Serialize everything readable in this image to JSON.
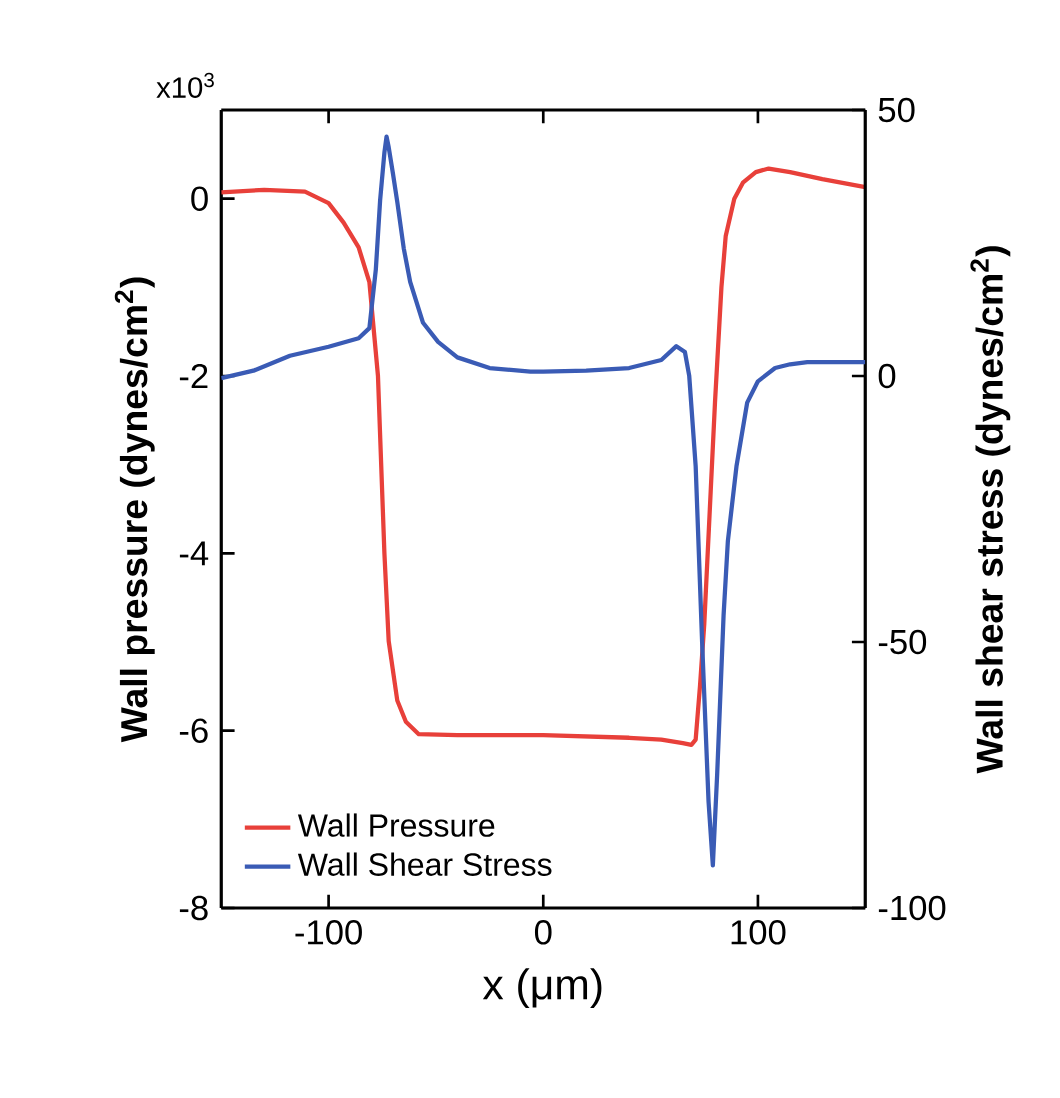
{
  "chart_data": {
    "type": "line",
    "xlabel": "x (μm)",
    "ylabel": "Wall pressure (dynes/cm$^{2}$)",
    "y2label": "Wall shear stress (dynes/cm$^{2}$)",
    "annotations": [
      "x10$^{3}$"
    ],
    "xlim": [
      -150,
      150
    ],
    "xticks": [
      -100,
      0,
      100
    ],
    "ylim": [
      -8,
      1
    ],
    "yticks": [
      -8,
      -6,
      -4,
      -2,
      0
    ],
    "y2lim": [
      -100,
      50
    ],
    "y2ticks": [
      -100,
      -50,
      0,
      50
    ],
    "legend": "bottom left",
    "grid": false,
    "marker": "none",
    "line_style": "solid",
    "series": [
      {
        "name": "Wall Pressure",
        "color": "#e8403a",
        "x": [
          -150,
          -130,
          -111,
          -100,
          -93,
          -86,
          -81,
          -77,
          -74,
          -72,
          -68,
          -64,
          -58,
          -40,
          0,
          40,
          55,
          65,
          69,
          71,
          73,
          75,
          78,
          80,
          83,
          85,
          89,
          93,
          99,
          105,
          115,
          130,
          150
        ],
        "values": [
          0.07,
          0.1,
          0.08,
          -0.05,
          -0.27,
          -0.55,
          -0.94,
          -2.0,
          -4.0,
          -4.99,
          -5.66,
          -5.9,
          -6.04,
          -6.05,
          -6.05,
          -6.08,
          -6.1,
          -6.14,
          -6.16,
          -6.1,
          -5.5,
          -4.8,
          -3.3,
          -2.3,
          -1.0,
          -0.42,
          0.0,
          0.18,
          0.3,
          0.34,
          0.3,
          0.22,
          0.13
        ]
      },
      {
        "name": "Wall Shear Stress",
        "color": "#3a5bb5",
        "axis": "y2",
        "x": [
          -150,
          -135,
          -118,
          -100,
          -86,
          -81,
          -78,
          -76,
          -74,
          -73,
          -72,
          -70,
          -68,
          -65,
          -62,
          -56,
          -49,
          -40,
          -25,
          -6,
          0,
          20,
          40,
          55,
          62,
          66,
          68,
          71,
          74,
          77,
          79,
          81,
          84,
          86,
          90,
          95,
          100,
          108,
          115,
          123,
          150
        ],
        "values": [
          -0.4,
          1,
          3.8,
          5.5,
          7.1,
          9,
          20,
          33,
          42,
          45,
          43,
          38,
          32.7,
          24,
          17.7,
          10,
          6.4,
          3.5,
          1.5,
          0.8,
          0.8,
          1,
          1.5,
          3,
          5.6,
          4.5,
          0,
          -17,
          -50,
          -80,
          -92,
          -75,
          -45,
          -31,
          -17,
          -5,
          -1,
          1.5,
          2.2,
          2.6,
          2.6
        ]
      }
    ]
  }
}
